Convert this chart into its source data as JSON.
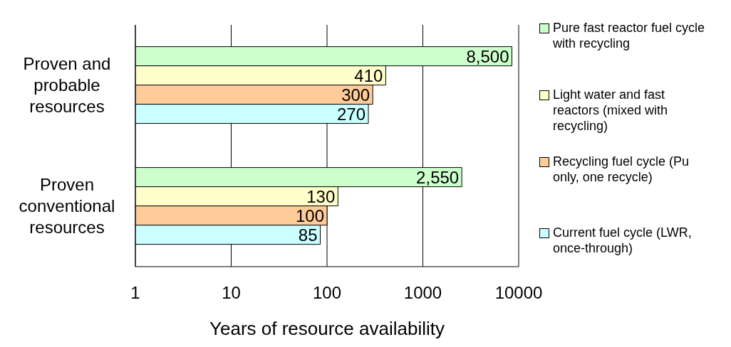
{
  "chart_data": {
    "type": "bar",
    "orientation": "horizontal",
    "log": "x",
    "categories": [
      "Proven and probable resources",
      "Proven conventional resources"
    ],
    "series": [
      {
        "name": "Pure fast reactor fuel cycle with recycling",
        "color": "#ccffcc",
        "values": [
          8500,
          2550
        ],
        "value_labels": [
          "8,500",
          "2,550"
        ]
      },
      {
        "name": "Light water and fast reactors (mixed with recycling)",
        "color": "#ffffcc",
        "values": [
          410,
          130
        ],
        "value_labels": [
          "410",
          "130"
        ]
      },
      {
        "name": "Recycling fuel cycle (Pu only, one recycle)",
        "color": "#ffcc99",
        "values": [
          300,
          100
        ],
        "value_labels": [
          "300",
          "100"
        ]
      },
      {
        "name": "Current fuel cycle (LWR, once-through)",
        "color": "#ccffff",
        "values": [
          270,
          85
        ],
        "value_labels": [
          "270",
          "85"
        ]
      }
    ],
    "xlim": [
      1,
      10000
    ],
    "xticks": [
      1,
      10,
      100,
      1000,
      10000
    ],
    "xlabel": "Years of resource availability",
    "grid": "x",
    "legend": "right"
  }
}
